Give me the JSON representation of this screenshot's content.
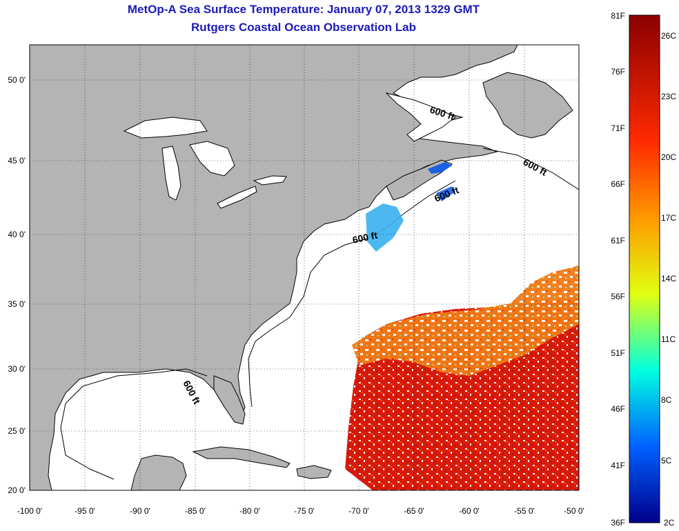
{
  "title": "MetOp-A Sea Surface Temperature:  January 07, 2013 1329 GMT",
  "subtitle": "Rutgers Coastal Ocean Observation Lab",
  "map": {
    "lon_labels": [
      "-100 0'",
      "-95 0'",
      "-90 0'",
      "-85 0'",
      "-80 0'",
      "-75 0'",
      "-70 0'",
      "-65 0'",
      "-60 0'",
      "-55 0'",
      "-50 0'"
    ],
    "lat_labels": [
      "50 0'",
      "45 0'",
      "40 0'",
      "35 0'",
      "30 0'",
      "25 0'",
      "20 0'"
    ],
    "contour_labels": [
      "600 ft",
      "600 ft",
      "600 ft",
      "600 ft",
      "600 ft"
    ],
    "land_color": "#b4b4b4",
    "ocean_color": "#ffffff"
  },
  "colorbar": {
    "fahrenheit_labels": [
      "81F",
      "76F",
      "71F",
      "66F",
      "61F",
      "56F",
      "51F",
      "46F",
      "41F",
      "36F"
    ],
    "celsius_labels": [
      "26C",
      "23C",
      "20C",
      "17C",
      "14C",
      "11C",
      "8C",
      "5C",
      "2C"
    ],
    "colormap": "jet"
  }
}
